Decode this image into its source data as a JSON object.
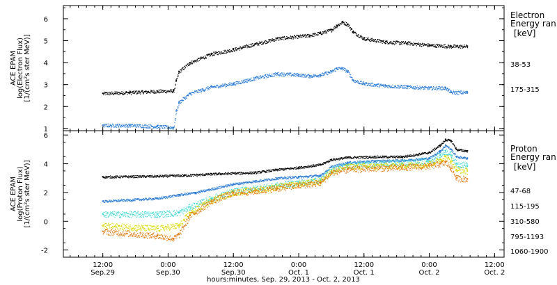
{
  "chart_data": [
    {
      "type": "scatter",
      "panel": "electron",
      "ylabel": [
        "ACE EPAM",
        "log(Electron Flux)",
        "[1/(cm²s ster MeV)]"
      ],
      "legend_title": [
        "Electron",
        "Energy ran",
        "[keV]"
      ],
      "ylim": [
        0.9,
        6.6
      ],
      "yticks": [
        "1",
        "2",
        "3",
        "4",
        "5",
        "6"
      ],
      "series": [
        {
          "name": "38-53",
          "color": "#000000",
          "points": [
            [
              0,
              2.6
            ],
            [
              10,
              2.65
            ],
            [
              20,
              2.7
            ],
            [
              26,
              2.72
            ],
            [
              27,
              3.2
            ],
            [
              28,
              3.6
            ],
            [
              32,
              4.0
            ],
            [
              40,
              4.4
            ],
            [
              48,
              4.6
            ],
            [
              56,
              4.85
            ],
            [
              64,
              5.1
            ],
            [
              72,
              5.2
            ],
            [
              76,
              5.25
            ],
            [
              80,
              5.35
            ],
            [
              84,
              5.5
            ],
            [
              86,
              5.7
            ],
            [
              88,
              5.85
            ],
            [
              90,
              5.75
            ],
            [
              92,
              5.4
            ],
            [
              96,
              5.1
            ],
            [
              104,
              4.95
            ],
            [
              112,
              4.9
            ],
            [
              120,
              4.8
            ],
            [
              128,
              4.75
            ],
            [
              134,
              4.75
            ]
          ]
        },
        {
          "name": "175-315",
          "color": "#2a7bd6",
          "points": [
            [
              0,
              1.15
            ],
            [
              10,
              1.15
            ],
            [
              20,
              1.1
            ],
            [
              26,
              1.05
            ],
            [
              27,
              1.8
            ],
            [
              28,
              2.2
            ],
            [
              32,
              2.6
            ],
            [
              40,
              2.9
            ],
            [
              48,
              3.05
            ],
            [
              56,
              3.3
            ],
            [
              64,
              3.5
            ],
            [
              72,
              3.45
            ],
            [
              76,
              3.4
            ],
            [
              80,
              3.45
            ],
            [
              84,
              3.6
            ],
            [
              86,
              3.75
            ],
            [
              88,
              3.75
            ],
            [
              90,
              3.6
            ],
            [
              92,
              3.2
            ],
            [
              96,
              3.05
            ],
            [
              104,
              2.95
            ],
            [
              112,
              2.9
            ],
            [
              120,
              2.85
            ],
            [
              126,
              2.85
            ],
            [
              128,
              2.65
            ],
            [
              134,
              2.65
            ]
          ]
        }
      ]
    },
    {
      "type": "scatter",
      "panel": "proton",
      "ylabel": [
        "ACE EPAM",
        "log(Proton Flux)",
        "[1/(cm²s ster MeV)]"
      ],
      "legend_title": [
        "Proton",
        "Energy ran",
        "[keV]"
      ],
      "ylim": [
        -2.5,
        6.3
      ],
      "yticks": [
        "-2",
        "0",
        "2",
        "4",
        "6"
      ],
      "series": [
        {
          "name": "47-68",
          "color": "#000000",
          "points": [
            [
              0,
              3.1
            ],
            [
              20,
              3.15
            ],
            [
              30,
              3.2
            ],
            [
              40,
              3.3
            ],
            [
              56,
              3.4
            ],
            [
              64,
              3.6
            ],
            [
              72,
              3.75
            ],
            [
              80,
              3.95
            ],
            [
              84,
              4.3
            ],
            [
              90,
              4.45
            ],
            [
              100,
              4.5
            ],
            [
              110,
              4.5
            ],
            [
              120,
              4.8
            ],
            [
              124,
              5.3
            ],
            [
              126,
              5.7
            ],
            [
              128,
              5.6
            ],
            [
              130,
              5.0
            ],
            [
              134,
              4.9
            ]
          ]
        },
        {
          "name": "115-195",
          "color": "#2a7bd6",
          "points": [
            [
              0,
              1.4
            ],
            [
              20,
              1.6
            ],
            [
              28,
              1.85
            ],
            [
              34,
              2.0
            ],
            [
              48,
              2.6
            ],
            [
              56,
              2.8
            ],
            [
              64,
              3.0
            ],
            [
              72,
              3.1
            ],
            [
              80,
              3.2
            ],
            [
              84,
              3.8
            ],
            [
              90,
              4.1
            ],
            [
              100,
              4.2
            ],
            [
              110,
              4.25
            ],
            [
              120,
              4.4
            ],
            [
              124,
              4.9
            ],
            [
              126,
              5.3
            ],
            [
              128,
              5.0
            ],
            [
              130,
              4.5
            ],
            [
              134,
              4.4
            ]
          ]
        },
        {
          "name": "310-580",
          "color": "#3fd6d6",
          "points": [
            [
              0,
              0.5
            ],
            [
              20,
              0.5
            ],
            [
              28,
              0.6
            ],
            [
              32,
              1.0
            ],
            [
              40,
              1.6
            ],
            [
              48,
              2.1
            ],
            [
              56,
              2.3
            ],
            [
              64,
              2.5
            ],
            [
              72,
              2.7
            ],
            [
              80,
              2.9
            ],
            [
              84,
              3.6
            ],
            [
              90,
              3.9
            ],
            [
              100,
              4.0
            ],
            [
              110,
              4.05
            ],
            [
              120,
              4.2
            ],
            [
              124,
              4.6
            ],
            [
              126,
              4.9
            ],
            [
              128,
              4.6
            ],
            [
              130,
              4.0
            ],
            [
              134,
              3.9
            ]
          ]
        },
        {
          "name": "795-1193",
          "color": "#d8d800",
          "points": [
            [
              0,
              -0.3
            ],
            [
              20,
              -0.5
            ],
            [
              28,
              -0.3
            ],
            [
              32,
              0.6
            ],
            [
              40,
              1.5
            ],
            [
              48,
              2.0
            ],
            [
              56,
              2.2
            ],
            [
              64,
              2.4
            ],
            [
              72,
              2.6
            ],
            [
              80,
              2.8
            ],
            [
              84,
              3.5
            ],
            [
              90,
              3.8
            ],
            [
              100,
              3.85
            ],
            [
              110,
              3.9
            ],
            [
              120,
              4.0
            ],
            [
              124,
              4.3
            ],
            [
              126,
              4.5
            ],
            [
              128,
              4.2
            ],
            [
              130,
              3.6
            ],
            [
              134,
              3.5
            ]
          ]
        },
        {
          "name": "1060-1900",
          "color": "#e07a10",
          "points": [
            [
              0,
              -0.7
            ],
            [
              20,
              -1.0
            ],
            [
              26,
              -1.2
            ],
            [
              28,
              -0.9
            ],
            [
              32,
              0.4
            ],
            [
              40,
              1.4
            ],
            [
              48,
              2.0
            ],
            [
              56,
              2.1
            ],
            [
              64,
              2.3
            ],
            [
              72,
              2.5
            ],
            [
              80,
              2.7
            ],
            [
              84,
              3.4
            ],
            [
              90,
              3.6
            ],
            [
              100,
              3.7
            ],
            [
              110,
              3.75
            ],
            [
              120,
              3.85
            ],
            [
              124,
              4.0
            ],
            [
              126,
              4.1
            ],
            [
              128,
              3.7
            ],
            [
              130,
              3.0
            ],
            [
              134,
              2.95
            ]
          ]
        }
      ]
    }
  ],
  "x_axis": {
    "label": "hours:minutes, Sep. 29, 2013 - Oct. 2, 2013",
    "hours_range": [
      -14.5,
      147.5
    ],
    "ticks": [
      {
        "hours": 0,
        "top": "12:00",
        "bottom": "Sep.29"
      },
      {
        "hours": 24,
        "top": "0:00",
        "bottom": "Sep.30"
      },
      {
        "hours": 48,
        "top": "12:00",
        "bottom": "Sep.30"
      },
      {
        "hours": 72,
        "top": "0:00",
        "bottom": "Oct. 1"
      },
      {
        "hours": 96,
        "top": "12:00",
        "bottom": "Oct. 1"
      },
      {
        "hours": 120,
        "top": "0:00",
        "bottom": "Oct. 2"
      },
      {
        "hours": 144,
        "top": "12:00",
        "bottom": "Oct. 2"
      }
    ]
  }
}
